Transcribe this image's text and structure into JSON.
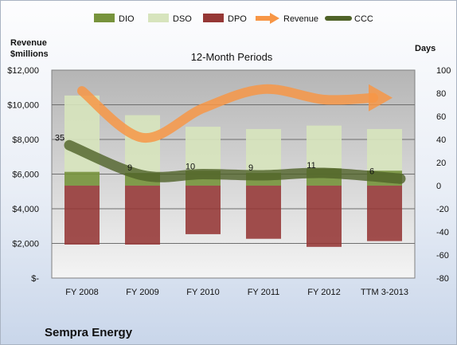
{
  "chart_data": {
    "type": "bar",
    "title": "12-Month Periods",
    "left_axis_title": [
      "Revenue",
      "$millions"
    ],
    "right_axis_title": "Days",
    "company": "Sempra Energy",
    "categories": [
      "FY 2008",
      "FY 2009",
      "FY 2010",
      "FY 2011",
      "FY 2012",
      "TTM 3-2013"
    ],
    "left_ticks": [
      "$-",
      "$2,000",
      "$4,000",
      "$6,000",
      "$8,000",
      "$10,000",
      "$12,000"
    ],
    "right_ticks": [
      "-80",
      "-60",
      "-40",
      "-20",
      "0",
      "20",
      "40",
      "60",
      "80",
      "100"
    ],
    "left_ylim": [
      0,
      12000
    ],
    "right_ylim": [
      -80,
      100
    ],
    "legend_position": "top",
    "grid": true,
    "series": [
      {
        "name": "DIO",
        "kind": "stacked-bar",
        "color": "#77933c",
        "values": [
          12,
          11,
          13,
          11,
          15,
          13
        ]
      },
      {
        "name": "DSO",
        "kind": "stacked-bar",
        "color": "#d7e4bd",
        "values": [
          66,
          50,
          38,
          38,
          37,
          36
        ]
      },
      {
        "name": "DPO",
        "kind": "bar-below-zero",
        "color": "#953735",
        "values": [
          -51,
          -51,
          -42,
          -46,
          -53,
          -48
        ]
      },
      {
        "name": "Revenue",
        "kind": "line-arrow",
        "axis": "left",
        "color": "#f79646",
        "values": [
          10800,
          8100,
          9800,
          10900,
          10300,
          10400
        ]
      },
      {
        "name": "CCC",
        "kind": "line",
        "axis": "right",
        "color": "#4f6228",
        "values": [
          35,
          9,
          10,
          9,
          11,
          6
        ]
      }
    ]
  }
}
